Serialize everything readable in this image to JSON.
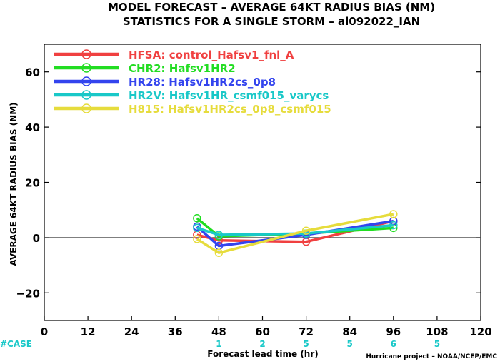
{
  "chart_data": {
    "type": "line",
    "title_line1": "MODEL FORECAST – AVERAGE 64KT RADIUS BIAS (NM)",
    "title_line2": "STATISTICS FOR A SINGLE STORM – al092022_IAN",
    "xlabel": "Forecast lead time (hr)",
    "ylabel": "AVERAGE 64KT RADIUS BIAS (NM)",
    "credit": "Hurricane project – NOAA/NCEP/EMC",
    "xlim": [
      0,
      120
    ],
    "ylim": [
      -30,
      70
    ],
    "xticks": [
      0,
      12,
      24,
      36,
      48,
      60,
      72,
      84,
      96,
      108,
      120
    ],
    "yticks": [
      -20,
      0,
      20,
      40,
      60
    ],
    "reference_line": 0,
    "case_label": "#CASE",
    "case_color": "#19c8c8",
    "cases": [
      {
        "x": 48,
        "n": "1"
      },
      {
        "x": 60,
        "n": "2"
      },
      {
        "x": 72,
        "n": "5"
      },
      {
        "x": 84,
        "n": "5"
      },
      {
        "x": 96,
        "n": "6"
      },
      {
        "x": 108,
        "n": "5"
      }
    ],
    "legend_position": "top-left",
    "series": [
      {
        "name": "HFSA: control_Hafsv1_fnl_A",
        "color": "#f04040",
        "x": [
          42,
          48,
          72,
          96
        ],
        "y": [
          1,
          -1,
          -1.5,
          6
        ]
      },
      {
        "name": "CHR2: Hafsv1HR2",
        "color": "#22dd22",
        "x": [
          42,
          48,
          72,
          96
        ],
        "y": [
          7,
          0.5,
          1.5,
          3.5
        ]
      },
      {
        "name": "HR28: Hafsv1HR2cs_0p8",
        "color": "#3344ee",
        "x": [
          42,
          48,
          72,
          96
        ],
        "y": [
          4,
          -3,
          1,
          6
        ]
      },
      {
        "name": "HR2V: Hafsv1HR_csmf015_varycs",
        "color": "#19c8c8",
        "x": [
          42,
          48,
          72,
          96
        ],
        "y": [
          3.5,
          1,
          1.5,
          4.5
        ]
      },
      {
        "name": "H815: Hafsv1HR2cs_0p8_csmf015",
        "color": "#e6dc3c",
        "x": [
          42,
          48,
          72,
          96
        ],
        "y": [
          -0.5,
          -5.5,
          2.5,
          8.5
        ]
      }
    ]
  }
}
